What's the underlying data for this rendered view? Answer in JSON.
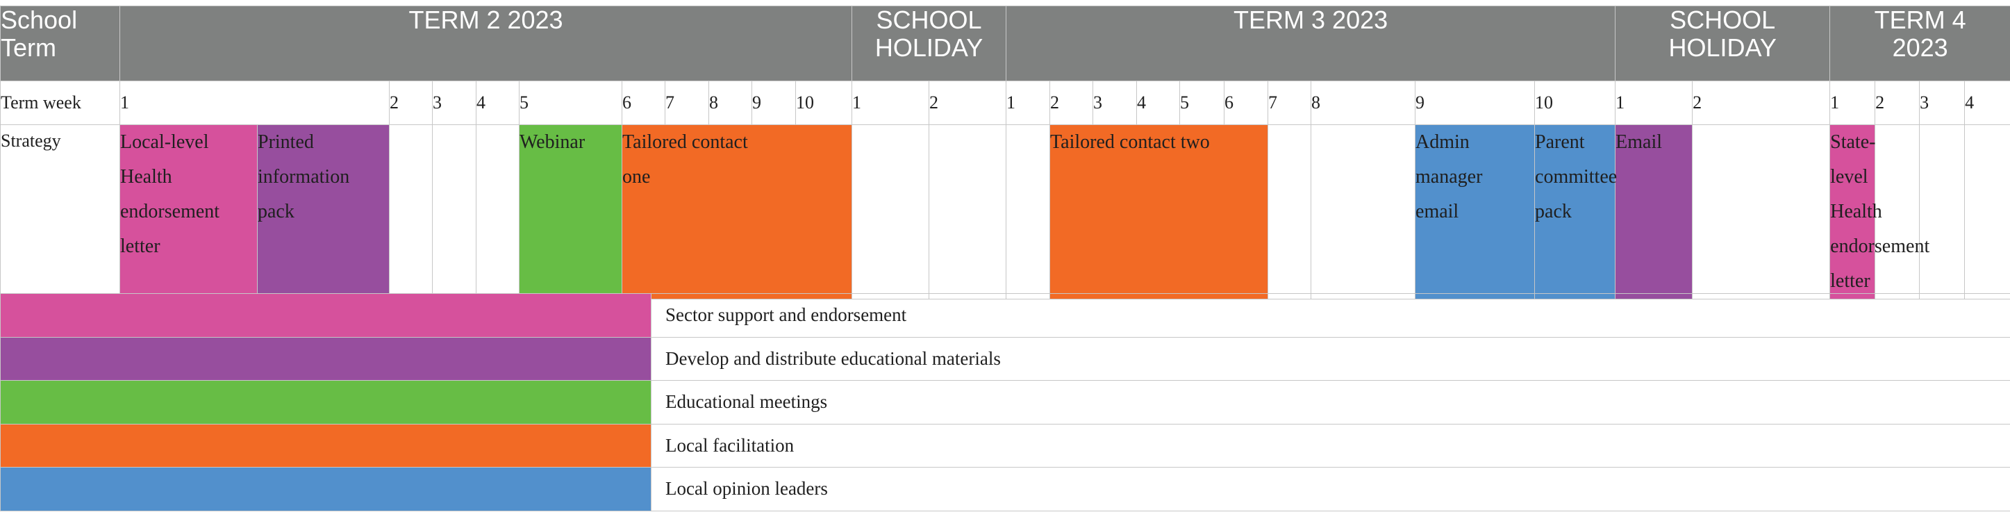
{
  "header": {
    "row_label": "School\nTerm",
    "row_label_line1": "School",
    "row_label_line2": "Term",
    "term2": "TERM 2 2023",
    "holiday1_line1": "SCHOOL",
    "holiday1_line2": "HOLIDAY",
    "term3": "TERM 3 2023",
    "holiday2_line1": "SCHOOL",
    "holiday2_line2": "HOLIDAY",
    "term4_line1": "TERM 4",
    "term4_line2": "2023"
  },
  "term_week": {
    "label": "Term week",
    "weeks": [
      "1",
      "2",
      "3",
      "4",
      "5",
      "6",
      "7",
      "8",
      "9",
      "10",
      "1",
      "2",
      "1",
      "2",
      "3",
      "4",
      "5",
      "6",
      "7",
      "8",
      "9",
      "10",
      "1",
      "2",
      "1",
      "2",
      "3",
      "4"
    ]
  },
  "strategy": {
    "label": "Strategy",
    "items": {
      "local_health_letter": [
        "Local-level",
        "Health",
        "endorsement",
        "letter"
      ],
      "printed_pack": [
        "Printed",
        "information",
        "pack"
      ],
      "webinar": [
        "Webinar"
      ],
      "tailored_one": [
        "Tailored contact",
        "one"
      ],
      "tailored_two": [
        "Tailored contact two"
      ],
      "admin_email": [
        "Admin",
        "manager",
        "email"
      ],
      "parent_pack": [
        "Parent",
        "committee",
        "pack"
      ],
      "email": [
        "Email"
      ],
      "state_health_letter": [
        "State-level",
        "Health",
        "endorsement",
        "letter"
      ]
    }
  },
  "legend": [
    {
      "label": "Sector support and endorsement",
      "color": "#d6519c"
    },
    {
      "label": "Develop and distribute educational materials",
      "color": "#974e9e"
    },
    {
      "label": "Educational meetings",
      "color": "#67bd45"
    },
    {
      "label": "Local facilitation",
      "color": "#f26a25"
    },
    {
      "label": "Local opinion leaders",
      "color": "#5290cc"
    }
  ],
  "colors": {
    "header_bg": "#7f8180",
    "pink": "#d6519c",
    "purple": "#974e9e",
    "green": "#67bd45",
    "orange": "#f26a25",
    "blue": "#5290cc"
  }
}
